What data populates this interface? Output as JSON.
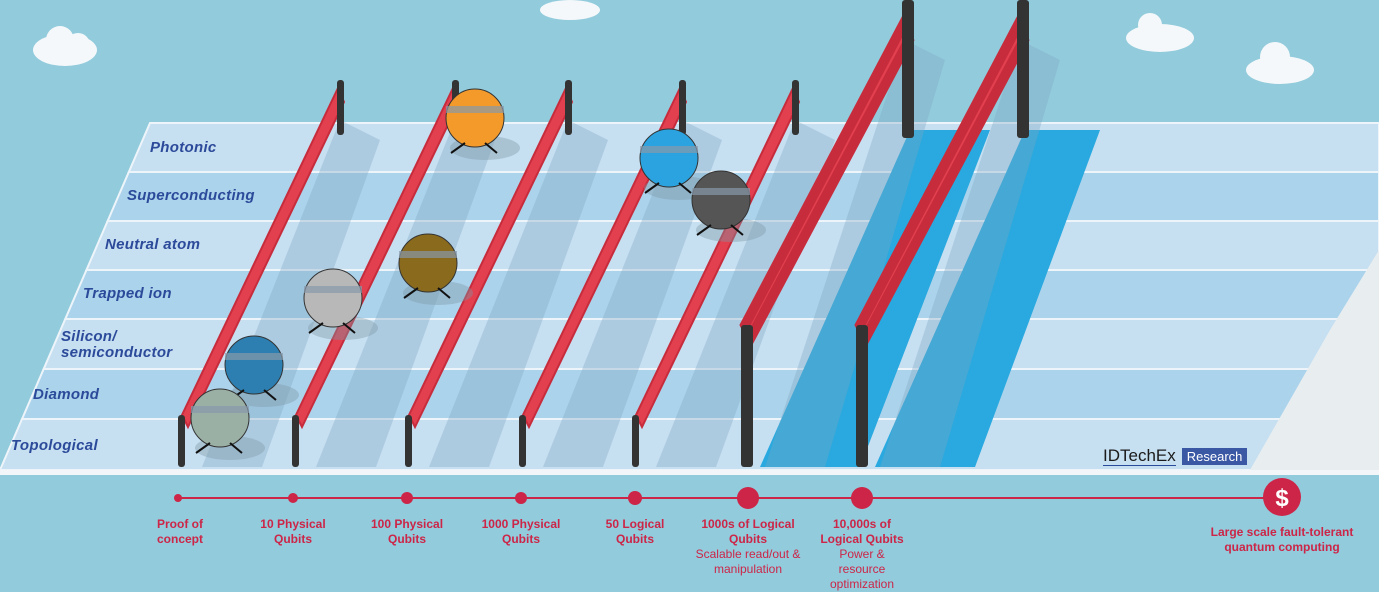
{
  "rows": [
    {
      "label": "Photonic"
    },
    {
      "label": "Superconducting"
    },
    {
      "label": "Neutral atom"
    },
    {
      "label": "Trapped ion"
    },
    {
      "label": "Silicon/ semiconductor"
    },
    {
      "label": "Diamond"
    },
    {
      "label": "Topological"
    }
  ],
  "milestones": [
    {
      "title": "Proof of concept",
      "sub": ""
    },
    {
      "title": "10 Physical Qubits",
      "sub": ""
    },
    {
      "title": "100 Physical Qubits",
      "sub": ""
    },
    {
      "title": "1000 Physical Qubits",
      "sub": ""
    },
    {
      "title": "50 Logical Qubits",
      "sub": ""
    },
    {
      "title": "1000s of Logical Qubits",
      "sub": "Scalable read/out & manipulation"
    },
    {
      "title": "10,000s of Logical Qubits",
      "sub": "Power & resource optimization"
    },
    {
      "title": "Large scale fault-tolerant quantum computing",
      "sub": ""
    }
  ],
  "goal_icon": "dollar-icon",
  "logo": {
    "brand": "IDTechEx",
    "tag": "Research"
  },
  "colors": {
    "sky": "#92cbdc",
    "hurdle": "#e2404f",
    "timeline": "#cc2547",
    "label": "#2c4a9a",
    "water": "#29a9df"
  }
}
